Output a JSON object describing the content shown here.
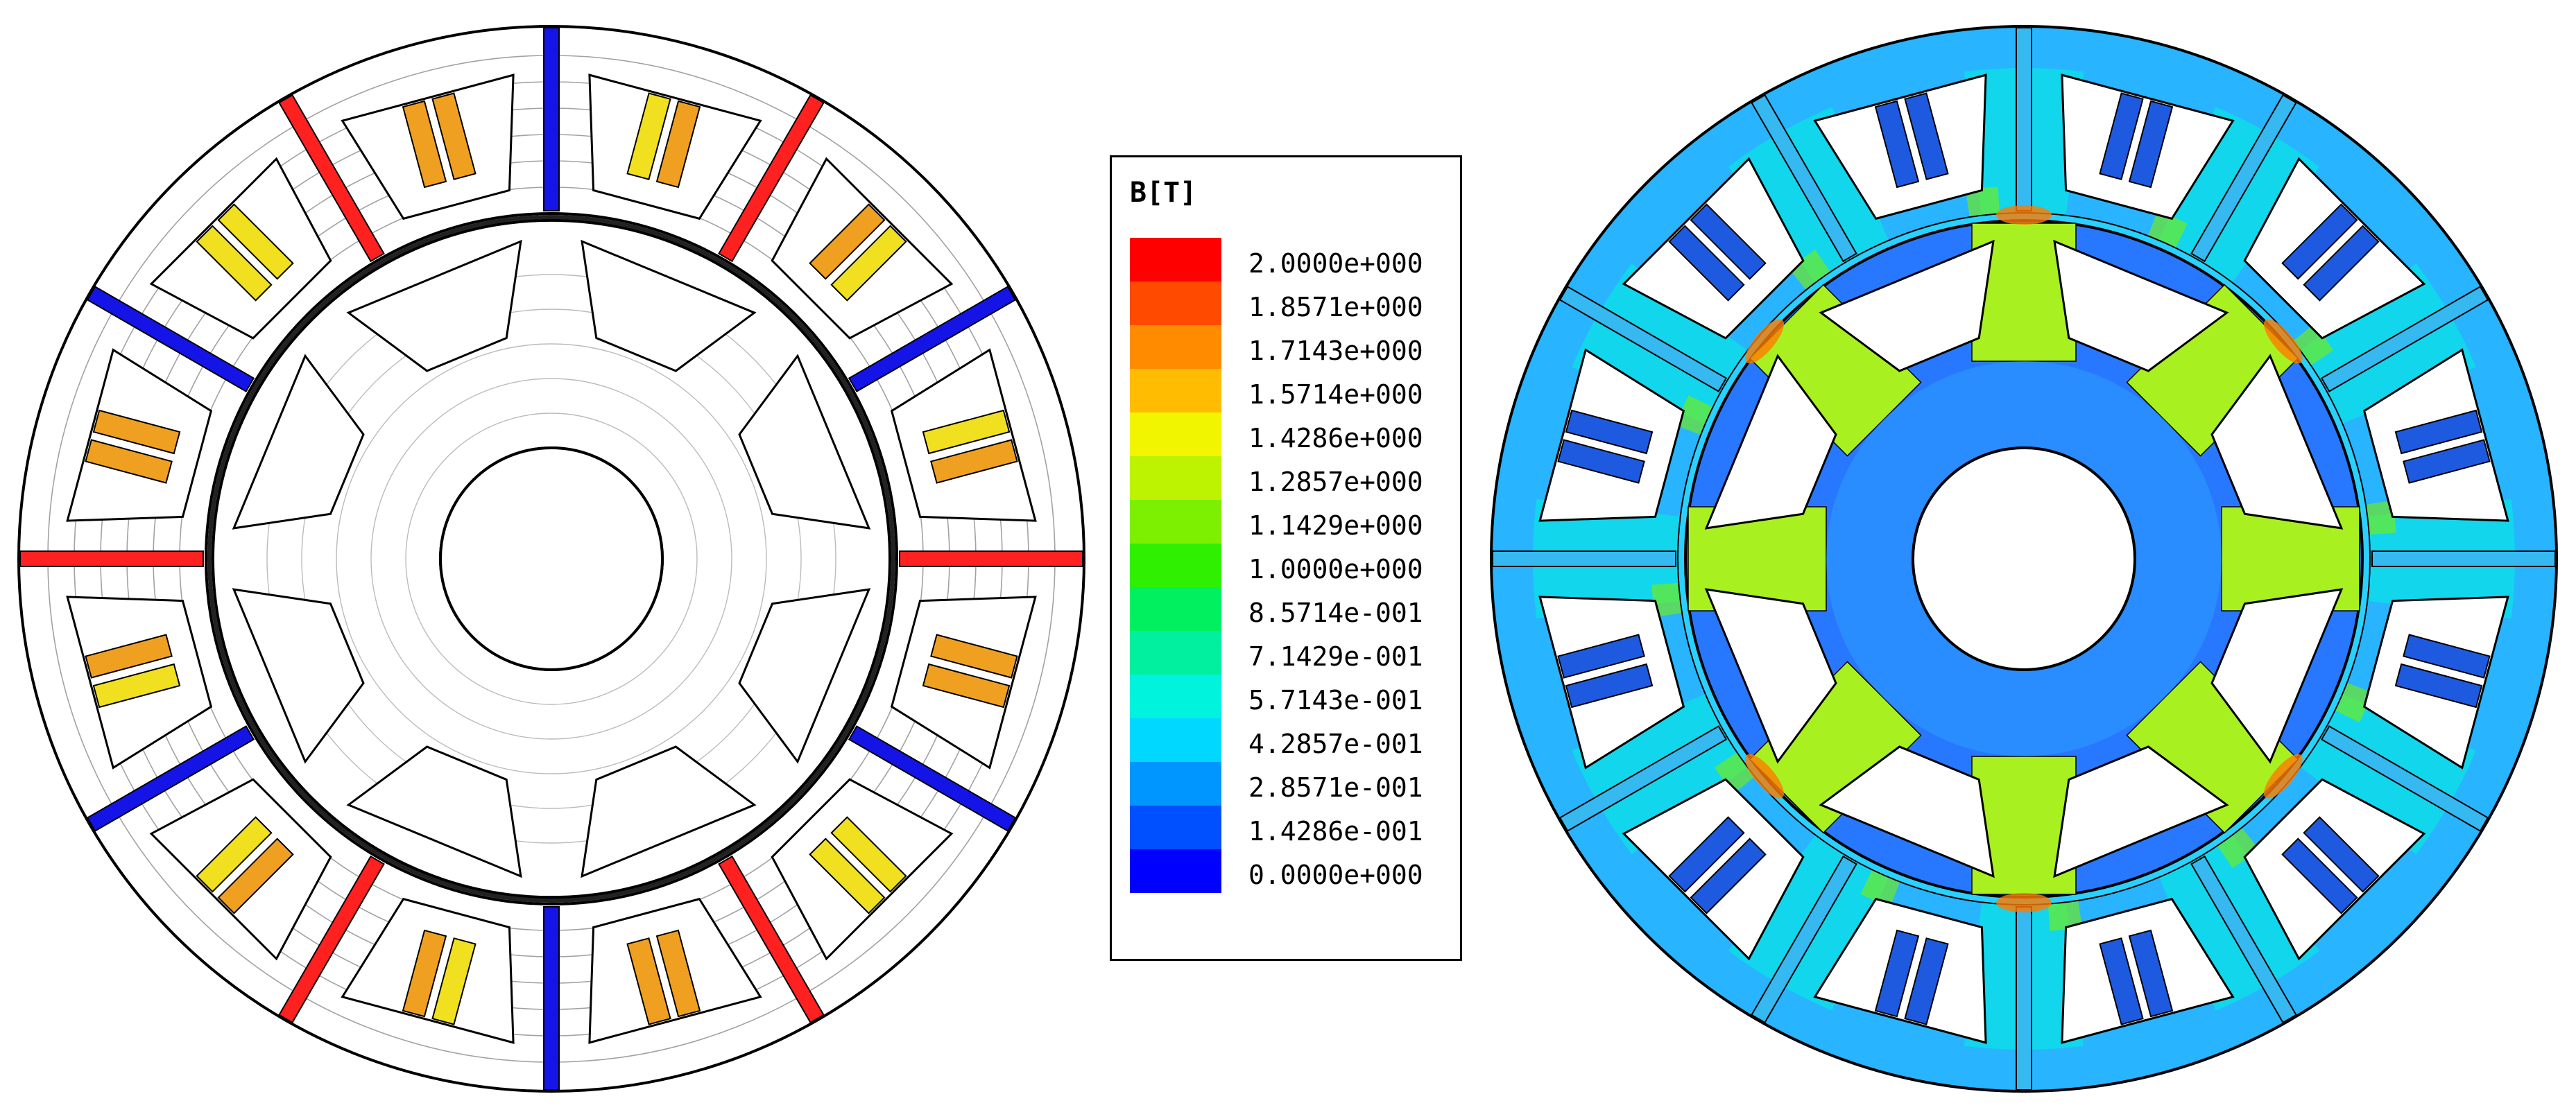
{
  "legend": {
    "title": "B[T]",
    "levels": [
      {
        "label": "2.0000e+000",
        "color": "#ff0000"
      },
      {
        "label": "1.8571e+000",
        "color": "#ff4a00"
      },
      {
        "label": "1.7143e+000",
        "color": "#ff8c00"
      },
      {
        "label": "1.5714e+000",
        "color": "#ffbc00"
      },
      {
        "label": "1.4286e+000",
        "color": "#f2f500"
      },
      {
        "label": "1.2857e+000",
        "color": "#bdf200"
      },
      {
        "label": "1.1429e+000",
        "color": "#7cf000"
      },
      {
        "label": "1.0000e+000",
        "color": "#2ff000"
      },
      {
        "label": "8.5714e-001",
        "color": "#00f060"
      },
      {
        "label": "7.1429e-001",
        "color": "#00f0a0"
      },
      {
        "label": "5.7143e-001",
        "color": "#00f3dc"
      },
      {
        "label": "4.2857e-001",
        "color": "#00d8ff"
      },
      {
        "label": "2.8571e-001",
        "color": "#0096ff"
      },
      {
        "label": "1.4286e-001",
        "color": "#0050ff"
      },
      {
        "label": "0.0000e+000",
        "color": "#0000ff"
      }
    ]
  },
  "motor": {
    "stator_slots": 12,
    "rotor_poles": 8,
    "magnet_colors": [
      "#ff2020",
      "#1414e6"
    ],
    "coil_colors": [
      "#f0a020",
      "#f0e020",
      "#1e5ae0"
    ],
    "outline_color": "#000000",
    "flux_line_color": "#555555"
  },
  "flux_map": {
    "stator_yoke_color": "#28b4ff",
    "stator_tooth_color": "#00f3dc",
    "rotor_core_color": "#2878ff",
    "rotor_tooth_color": "#a8f020",
    "hotspot_color": "#ff7a00"
  }
}
